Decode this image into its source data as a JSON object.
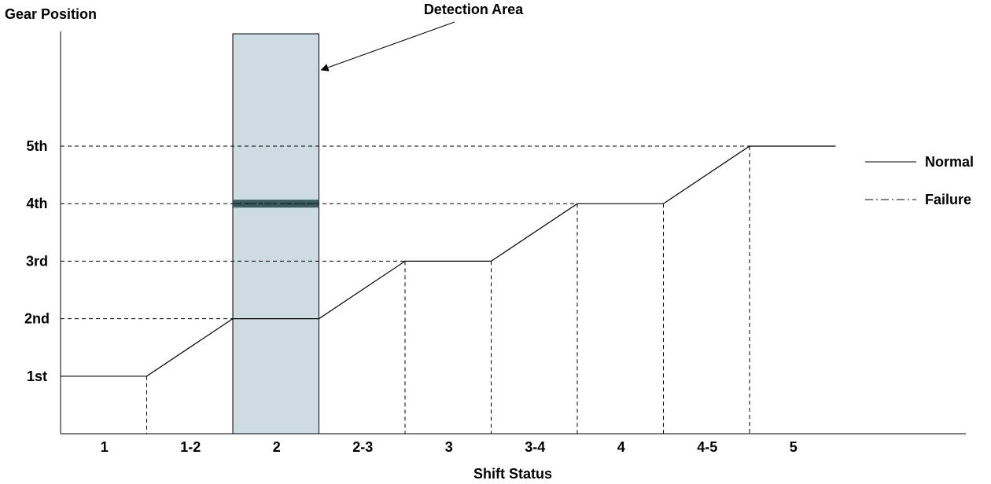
{
  "chart_data": {
    "type": "line",
    "title": "",
    "ylabel": "Gear Position",
    "xlabel": "Shift Status",
    "categories": [
      "1",
      "1-2",
      "2",
      "2-3",
      "3",
      "3-4",
      "4",
      "4-5",
      "5"
    ],
    "y_tick_labels": [
      "1st",
      "2nd",
      "3rd",
      "4th",
      "5th"
    ],
    "ylim": [
      0,
      7
    ],
    "grid": false,
    "legend_position": "right",
    "series": [
      {
        "name": "Normal",
        "style": "solid",
        "points": [
          {
            "x": 0,
            "y": 1
          },
          {
            "x": 1,
            "y": 1
          },
          {
            "x": 2,
            "y": 2
          },
          {
            "x": 3,
            "y": 2
          },
          {
            "x": 4,
            "y": 3
          },
          {
            "x": 5,
            "y": 3
          },
          {
            "x": 6,
            "y": 4
          },
          {
            "x": 7,
            "y": 4
          },
          {
            "x": 8,
            "y": 5
          },
          {
            "x": 9,
            "y": 5
          }
        ]
      },
      {
        "name": "Failure",
        "style": "dash-dot",
        "points": [
          {
            "x": 2,
            "y": 4
          },
          {
            "x": 3,
            "y": 4
          }
        ]
      }
    ],
    "highlight": {
      "label": "Detection Area",
      "x_range": [
        2,
        3
      ],
      "color": "#cddbe2"
    },
    "colors": {
      "line": "#000000",
      "failure_band": "#3d5a5e",
      "highlight_fill": "#cddbe2"
    }
  }
}
